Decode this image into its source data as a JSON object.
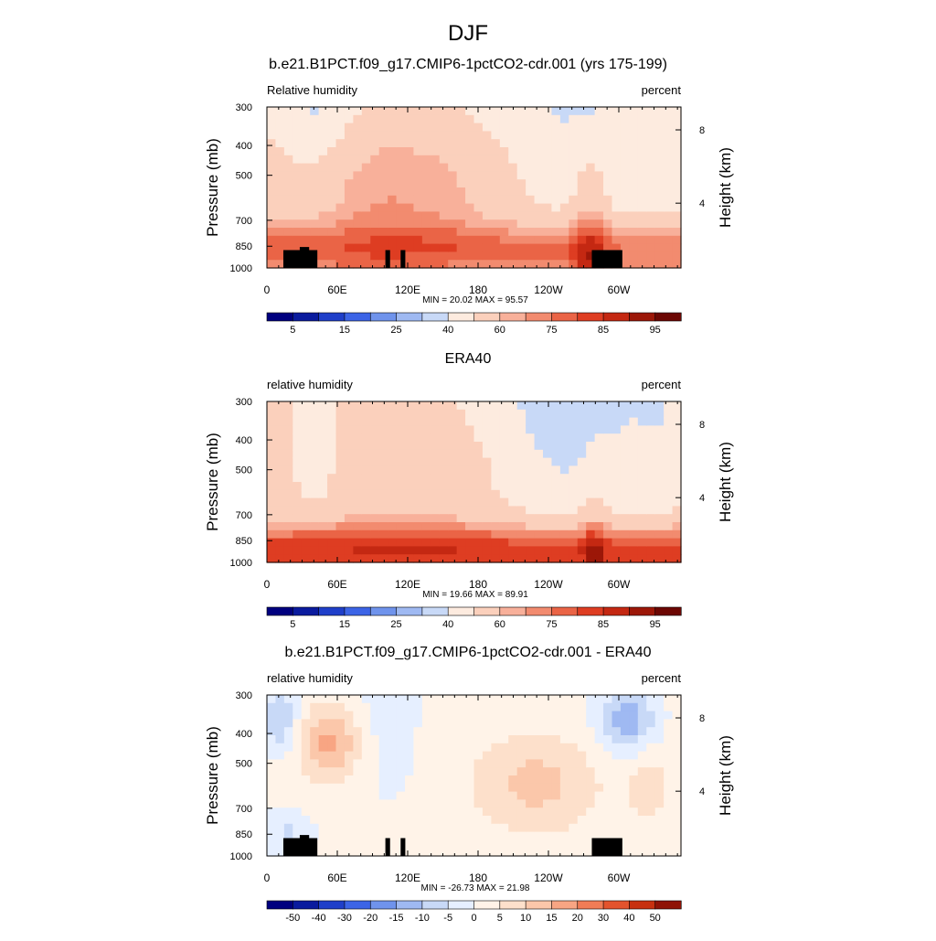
{
  "page_title": "DJF",
  "colors": {
    "rh_levels": [
      "#00007f",
      "#0a1b9e",
      "#1f3fc9",
      "#3c64e6",
      "#6f93ec",
      "#9fb9f2",
      "#c8d9f7",
      "#fdebdf",
      "#fbd0bc",
      "#f8b09a",
      "#f28b6f",
      "#ea6446",
      "#de3d22",
      "#c42812",
      "#9c1708",
      "#6c0703"
    ],
    "diff_levels": [
      "#00007f",
      "#0a1b9e",
      "#1f3fc9",
      "#3c64e6",
      "#6f93ec",
      "#9fb9f2",
      "#c8d9f7",
      "#e6efff",
      "#fff3e8",
      "#fde0cb",
      "#fbc7aa",
      "#f8a583",
      "#f07c56",
      "#e3532d",
      "#c7300f",
      "#8f1205"
    ],
    "terrain": "#000000"
  },
  "chart_data": [
    {
      "type": "heatmap",
      "title": "b.e21.B1PCT.f09_g17.CMIP6-1pctCO2-cdr.001 (yrs 175-199)",
      "left_label": "Relative humidity",
      "right_label": "percent",
      "ylabel": "Pressure (mb)",
      "ylabel_right": "Height (km)",
      "x_ticks": [
        "0",
        "60E",
        "120E",
        "180",
        "120W",
        "60W"
      ],
      "y_ticks": [
        "300",
        "400",
        "500",
        "700",
        "850",
        "1000"
      ],
      "y_right_ticks": [
        "8",
        "4"
      ],
      "ylim": [
        1000,
        300
      ],
      "stats": "MIN =  20.02  MAX =  95.57",
      "colorbar_labels": [
        "5",
        "15",
        "25",
        "40",
        "60",
        "75",
        "85",
        "95"
      ],
      "range": [
        20.02,
        95.57
      ]
    },
    {
      "type": "heatmap",
      "title": "ERA40",
      "left_label": "relative humidity",
      "right_label": "percent",
      "ylabel": "Pressure (mb)",
      "ylabel_right": "Height (km)",
      "x_ticks": [
        "0",
        "60E",
        "120E",
        "180",
        "120W",
        "60W"
      ],
      "y_ticks": [
        "300",
        "400",
        "500",
        "700",
        "850",
        "1000"
      ],
      "y_right_ticks": [
        "8",
        "4"
      ],
      "ylim": [
        1000,
        300
      ],
      "stats": "MIN =  19.66  MAX =  89.91",
      "colorbar_labels": [
        "5",
        "15",
        "25",
        "40",
        "60",
        "75",
        "85",
        "95"
      ],
      "range": [
        19.66,
        89.91
      ]
    },
    {
      "type": "heatmap",
      "title": "b.e21.B1PCT.f09_g17.CMIP6-1pctCO2-cdr.001 - ERA40",
      "left_label": "relative humidity",
      "right_label": "percent",
      "ylabel": "Pressure (mb)",
      "ylabel_right": "Height (km)",
      "x_ticks": [
        "0",
        "60E",
        "120E",
        "180",
        "120W",
        "60W"
      ],
      "y_ticks": [
        "300",
        "400",
        "500",
        "700",
        "850",
        "1000"
      ],
      "y_right_ticks": [
        "8",
        "4"
      ],
      "ylim": [
        1000,
        300
      ],
      "stats": "MIN = -26.73  MAX =  21.98",
      "colorbar_labels": [
        "-50",
        "-40",
        "-30",
        "-20",
        "-15",
        "-10",
        "-5",
        "0",
        "5",
        "10",
        "15",
        "20",
        "30",
        "40",
        "50"
      ],
      "range": [
        -26.73,
        21.98
      ]
    }
  ]
}
